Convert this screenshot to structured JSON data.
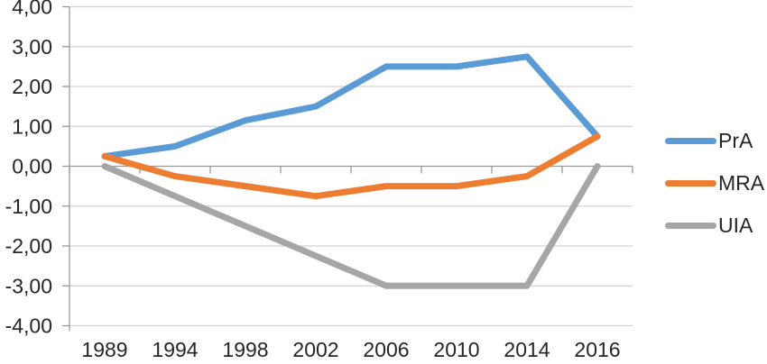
{
  "chart_data": {
    "type": "line",
    "title": "",
    "xlabel": "",
    "ylabel": "",
    "categories": [
      "1989",
      "1994",
      "1998",
      "2002",
      "2006",
      "2010",
      "2014",
      "2016"
    ],
    "series": [
      {
        "name": "PrA",
        "color": "#5B9BD5",
        "values": [
          0.25,
          0.5,
          1.15,
          1.5,
          2.5,
          2.5,
          2.75,
          0.75
        ]
      },
      {
        "name": "MRA",
        "color": "#ED7D31",
        "values": [
          0.25,
          -0.25,
          -0.5,
          -0.75,
          -0.5,
          -0.5,
          -0.25,
          0.75
        ]
      },
      {
        "name": "UIA",
        "color": "#A6A6A6",
        "values": [
          0.0,
          -0.75,
          -1.5,
          -2.25,
          -3.0,
          -3.0,
          -3.0,
          0.0
        ]
      }
    ],
    "ylim": [
      -4,
      4
    ],
    "y_tick_step": 1,
    "y_tick_labels": [
      "4,00",
      "3,00",
      "2,00",
      "1,00",
      "0,00",
      "-1,00",
      "-2,00",
      "-3,00",
      "-4,00"
    ],
    "grid": true,
    "legend_position": "right"
  },
  "colors": {
    "background": "#FFFFFF",
    "gridline": "#D2D2D2",
    "axis": "#999999",
    "tick_text": "#262626"
  }
}
